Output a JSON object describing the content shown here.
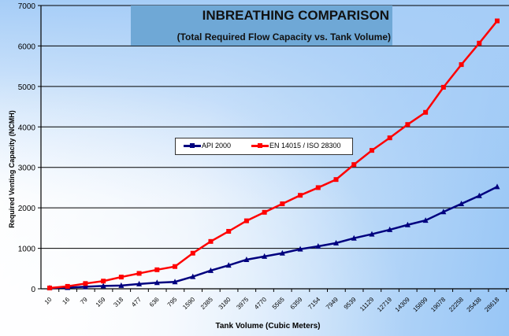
{
  "chart_data": {
    "type": "line",
    "title": "INBREATHING COMPARISON",
    "subtitle": "(Total Required Flow Capacity vs. Tank Volume)",
    "xlabel": "Tank Volume (Cubic Meters)",
    "ylabel": "Required Venting Capacity (NCMH)",
    "ylim": [
      0,
      7000
    ],
    "yticks": [
      0,
      1000,
      2000,
      3000,
      4000,
      5000,
      6000,
      7000
    ],
    "grid": "horizontal",
    "legend_placement": "center",
    "categories": [
      "10",
      "16",
      "79",
      "159",
      "318",
      "477",
      "636",
      "795",
      "1590",
      "2385",
      "3180",
      "3975",
      "4770",
      "5565",
      "6359",
      "7154",
      "7949",
      "9539",
      "11129",
      "12719",
      "14309",
      "15899",
      "19078",
      "22258",
      "25438",
      "28618"
    ],
    "series": [
      {
        "name": "API 2000",
        "color": "#00007f",
        "marker": "triangle",
        "values": [
          20,
          30,
          50,
          70,
          80,
          120,
          150,
          170,
          300,
          450,
          580,
          720,
          800,
          880,
          980,
          1050,
          1130,
          1250,
          1350,
          1460,
          1580,
          1690,
          1900,
          2100,
          2300,
          2520
        ]
      },
      {
        "name": "EN 14015 / ISO 28300",
        "color": "#ff0000",
        "marker": "square",
        "values": [
          20,
          60,
          130,
          190,
          290,
          380,
          470,
          550,
          880,
          1170,
          1420,
          1680,
          1890,
          2100,
          2310,
          2500,
          2700,
          3070,
          3420,
          3730,
          4060,
          4360,
          4980,
          5540,
          6070,
          6620
        ]
      }
    ]
  }
}
